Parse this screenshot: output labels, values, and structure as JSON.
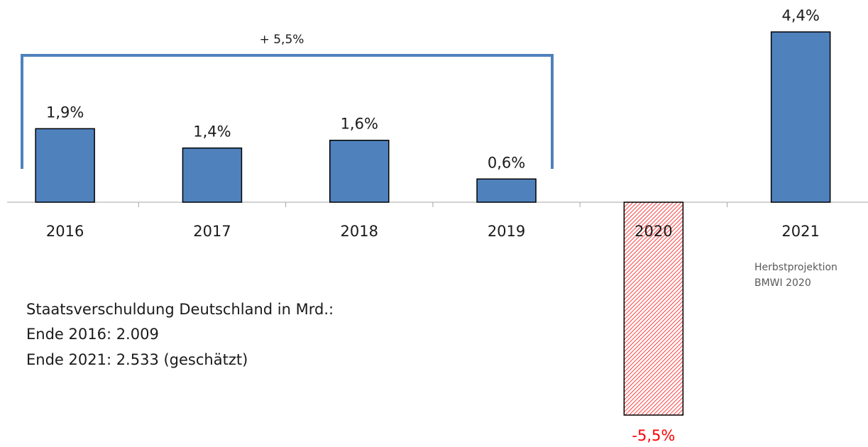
{
  "chart_data": {
    "type": "bar",
    "categories": [
      "2016",
      "2017",
      "2018",
      "2019",
      "2020",
      "2021"
    ],
    "values": [
      1.9,
      1.4,
      1.6,
      0.6,
      -5.5,
      4.4
    ],
    "value_labels": [
      "1,9%",
      "1,4%",
      "1,6%",
      "0,6%",
      "-5,5%",
      "4,4%"
    ],
    "colors": [
      "#4f81bd",
      "#4f81bd",
      "#4f81bd",
      "#4f81bd",
      "#ff0000",
      "#4f81bd"
    ],
    "ylim": [
      -5.5,
      4.4
    ],
    "bracket_label": "+ 5,5%",
    "note": [
      "Herbstprojektion",
      "BMWI 2020"
    ],
    "text_block": [
      "Staatsverschuldung Deutschland in Mrd.:",
      "Ende 2016: 2.009",
      "Ende 2021: 2.533 (geschätzt)"
    ]
  }
}
